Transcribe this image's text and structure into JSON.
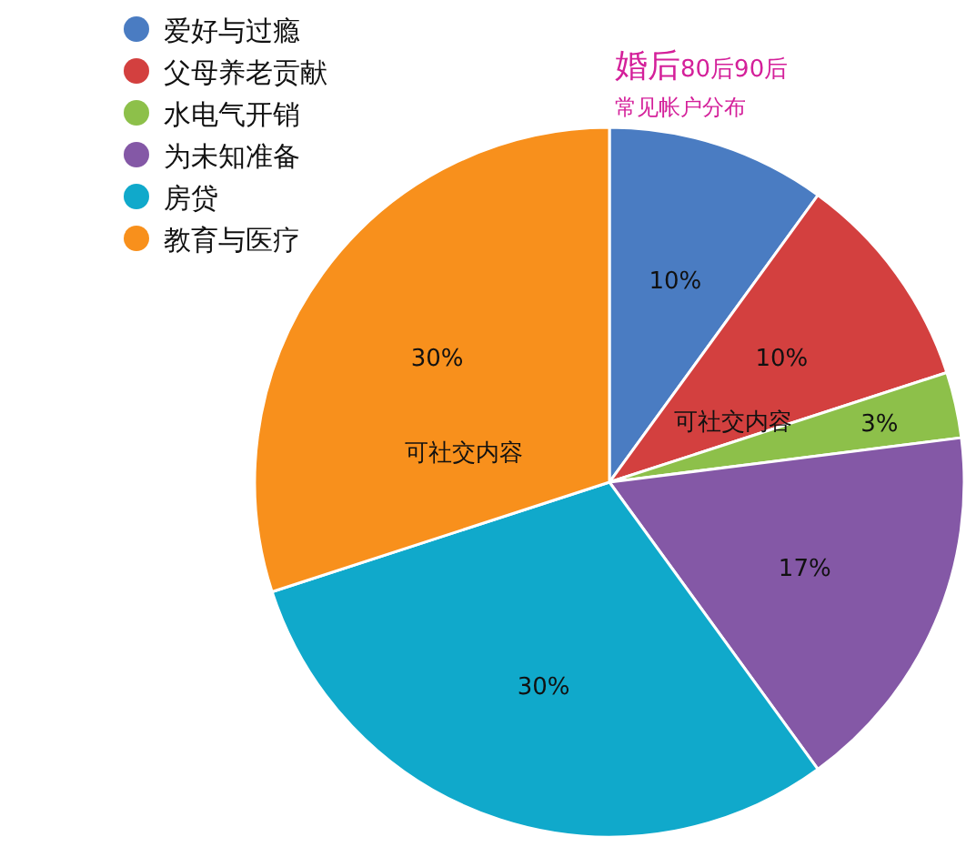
{
  "chart_data": {
    "type": "pie",
    "title": "婚后80后90后",
    "subtitle": "常见帐户分布",
    "categories": [
      "爱好与过瘾",
      "父母养老贡献",
      "水电气开销",
      "为未知准备",
      "房贷",
      "教育与医疗"
    ],
    "values": [
      10,
      10,
      3,
      17,
      30,
      30
    ],
    "colors": [
      "#4a7cc2",
      "#d3403f",
      "#8dc04a",
      "#8458a6",
      "#10a9cb",
      "#f8901c"
    ],
    "value_labels": [
      "10%",
      "10%",
      "3%",
      "17%",
      "30%",
      "30%"
    ],
    "legend": "top left",
    "annotations": [
      "可社交内容",
      "可社交内容"
    ]
  }
}
